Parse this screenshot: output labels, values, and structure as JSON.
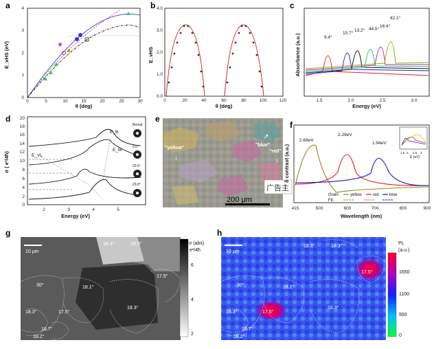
{
  "panels": {
    "a": {
      "label": "a",
      "ylabel": "E_vHS (eV)",
      "xlabel": "θ (deg)",
      "xticks": [
        "0",
        "5",
        "10",
        "15",
        "20",
        "25",
        "30"
      ],
      "yticks": [
        "0",
        "1",
        "2",
        "3",
        "4"
      ]
    },
    "b": {
      "label": "b",
      "ylabel": "E_vHS",
      "xlabel": "θ (deg)",
      "xticks": [
        "0",
        "20",
        "40",
        "60",
        "80",
        "100",
        "120"
      ],
      "yticks": [
        "0.0",
        "0.5",
        "1.0",
        "1.5",
        "2.0",
        "2.5",
        "3.0",
        "3.5",
        "4.0"
      ]
    },
    "c": {
      "label": "c",
      "ylabel": "Absorbance (a.u.)",
      "xlabel": "Energy (eV)",
      "xticks": [
        "1.5",
        "2.0",
        "2.5",
        "3.0"
      ],
      "peak_labels": [
        "9.4°",
        "10.7°",
        "13.2°",
        "44.5°",
        "16.4°",
        "42.1°"
      ],
      "colors": [
        "#d22",
        "#22d",
        "#111",
        "#2c6",
        "#a2c",
        "#9a0"
      ]
    },
    "d": {
      "label": "d",
      "ylabel": "σ ( e²/4ħ)",
      "xlabel": "Energy (eV)",
      "xticks": [
        "2",
        "3",
        "4",
        "5"
      ],
      "yticks": [
        "0",
        "2",
        "4",
        "6",
        "8",
        "10",
        "12",
        "14",
        "16",
        "18",
        "20"
      ],
      "annotations": [
        "E_B",
        "E_M",
        "E_VL"
      ],
      "side_labels": [
        "Bernal",
        "6.0°",
        "20.6°",
        "29.8°"
      ]
    },
    "e": {
      "label": "e",
      "annotations": [
        "\"yellow\"",
        "\"blue\"",
        "\"red\""
      ],
      "scale": "200 μm",
      "watermark": "广告主"
    },
    "f": {
      "label": "f",
      "ylabel": "δ contrast (a.u.)",
      "xlabel": "Wavelength (nm)",
      "xticks": [
        "415",
        "500",
        "600",
        "700",
        "800",
        "900"
      ],
      "peaks": [
        "2.69eV",
        "2.29eV",
        "1.94eV"
      ],
      "legend_grain": "Grain:",
      "legend": [
        "yellow",
        "red",
        "blue"
      ],
      "legend_fit": "Fit:",
      "inset_xlabel": "E (eV)",
      "inset_xticks": [
        "1.5",
        "2",
        "2.5",
        "3"
      ]
    },
    "g": {
      "label": "g",
      "scale": "10 μm",
      "cbar_title": "σ (abs)",
      "cbar_unit": "e²/4ħ",
      "cbar_ticks": [
        "6",
        "4",
        "2"
      ],
      "angles": [
        "18.3°",
        "18.3°",
        "17.5°",
        "30°",
        "18.1°",
        "17.5°",
        "18.3°",
        "18.3°",
        "16.7°",
        "18.2°"
      ]
    },
    "h": {
      "label": "h",
      "scale": "10 μm",
      "cbar_title": "PL",
      "cbar_unit": "(a.u.)",
      "cbar_ticks": [
        "1650",
        "1100",
        "550",
        "0"
      ],
      "angles": [
        "18.3°",
        "18.3°",
        "17.5°",
        "30°",
        "18.1°",
        "17.5°",
        "18.3°",
        "18.3°",
        "16.7°",
        "18.2°"
      ]
    }
  }
}
